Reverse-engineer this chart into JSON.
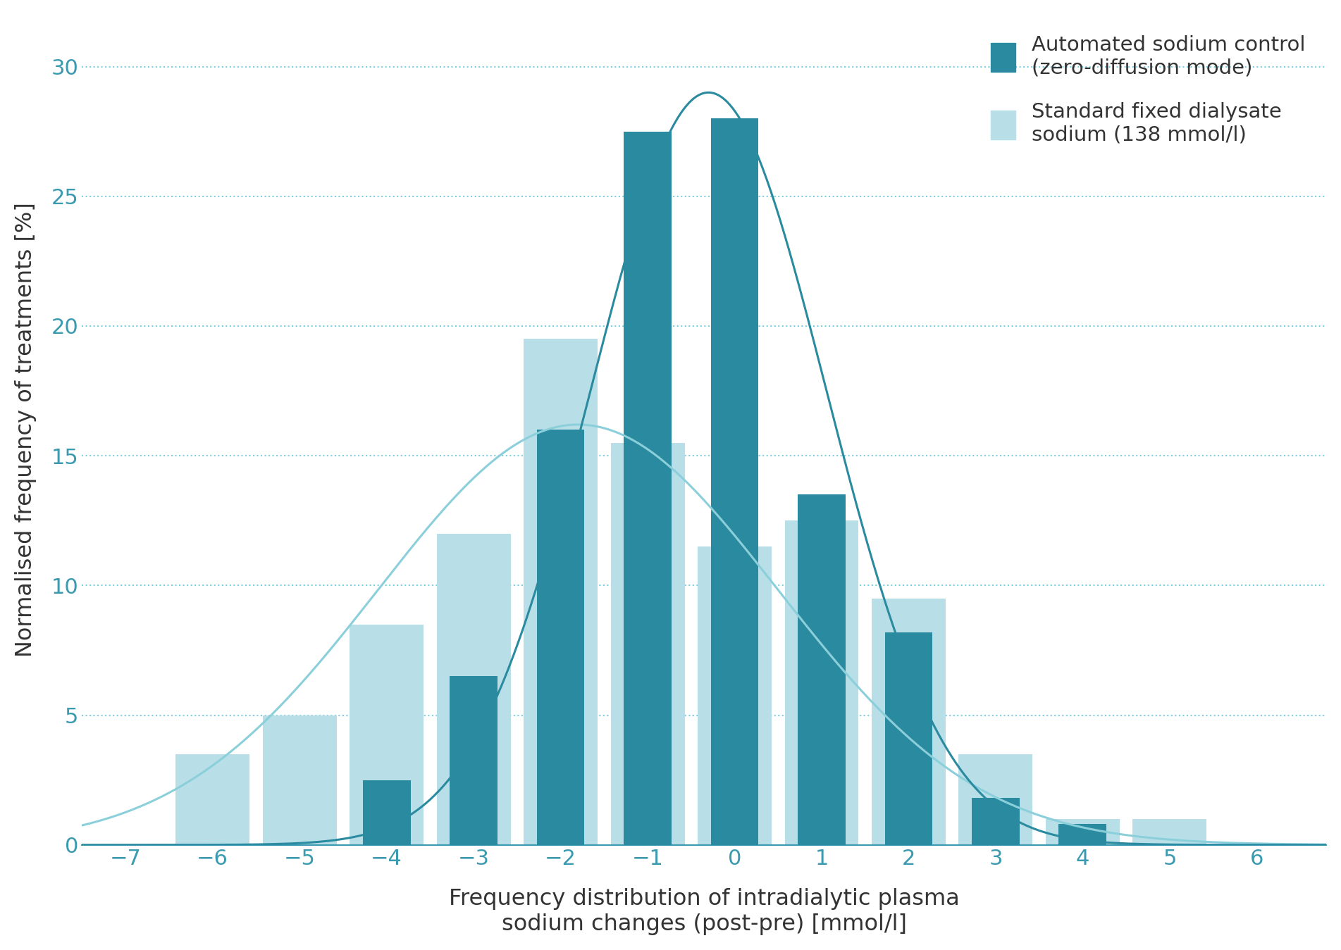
{
  "dark_positions": [
    -4,
    -3,
    -2,
    -1,
    0,
    1,
    2,
    3,
    4
  ],
  "dark_values": [
    2.5,
    6.5,
    16.0,
    27.5,
    28.0,
    13.5,
    8.2,
    1.8,
    0.8
  ],
  "light_positions": [
    -6,
    -5,
    -4,
    -3,
    -2,
    -1,
    0,
    1,
    2,
    3,
    4,
    5
  ],
  "light_values": [
    3.5,
    5.0,
    8.5,
    12.0,
    19.5,
    15.5,
    11.5,
    12.5,
    9.5,
    3.5,
    1.0,
    1.0
  ],
  "dark_color": "#2a8a9f",
  "light_color": "#b8dfe8",
  "curve_dark_color": "#2a8a9f",
  "curve_light_color": "#8bcfdb",
  "dark_mean": -0.3,
  "dark_std": 1.35,
  "dark_peak": 29.0,
  "light_mean": -1.8,
  "light_std": 2.3,
  "light_peak": 16.2,
  "xlabel_line1": "Frequency distribution of intradialytic plasma",
  "xlabel_line2": "sodium changes (post-pre) [mmol/l]",
  "ylabel": "Normalised frequency of treatments [%]",
  "legend_label1_line1": "Automated sodium control",
  "legend_label1_line2": "(zero-diffusion mode)",
  "legend_label2_line1": "Standard fixed dialysate",
  "legend_label2_line2": "sodium (138 mmol/l)",
  "xlim": [
    -7.5,
    6.8
  ],
  "ylim": [
    0,
    32
  ],
  "xticks": [
    -7,
    -6,
    -5,
    -4,
    -3,
    -2,
    -1,
    0,
    1,
    2,
    3,
    4,
    5,
    6
  ],
  "yticks": [
    0,
    5,
    10,
    15,
    20,
    25,
    30
  ],
  "dark_bar_width": 0.55,
  "light_bar_width": 0.85,
  "tick_label_fontsize": 22,
  "axis_label_fontsize": 23,
  "legend_fontsize": 21,
  "label_color": "#333333",
  "tick_color": "#3a9ab0",
  "grid_color": "#7ecfdf",
  "background_color": "#ffffff"
}
